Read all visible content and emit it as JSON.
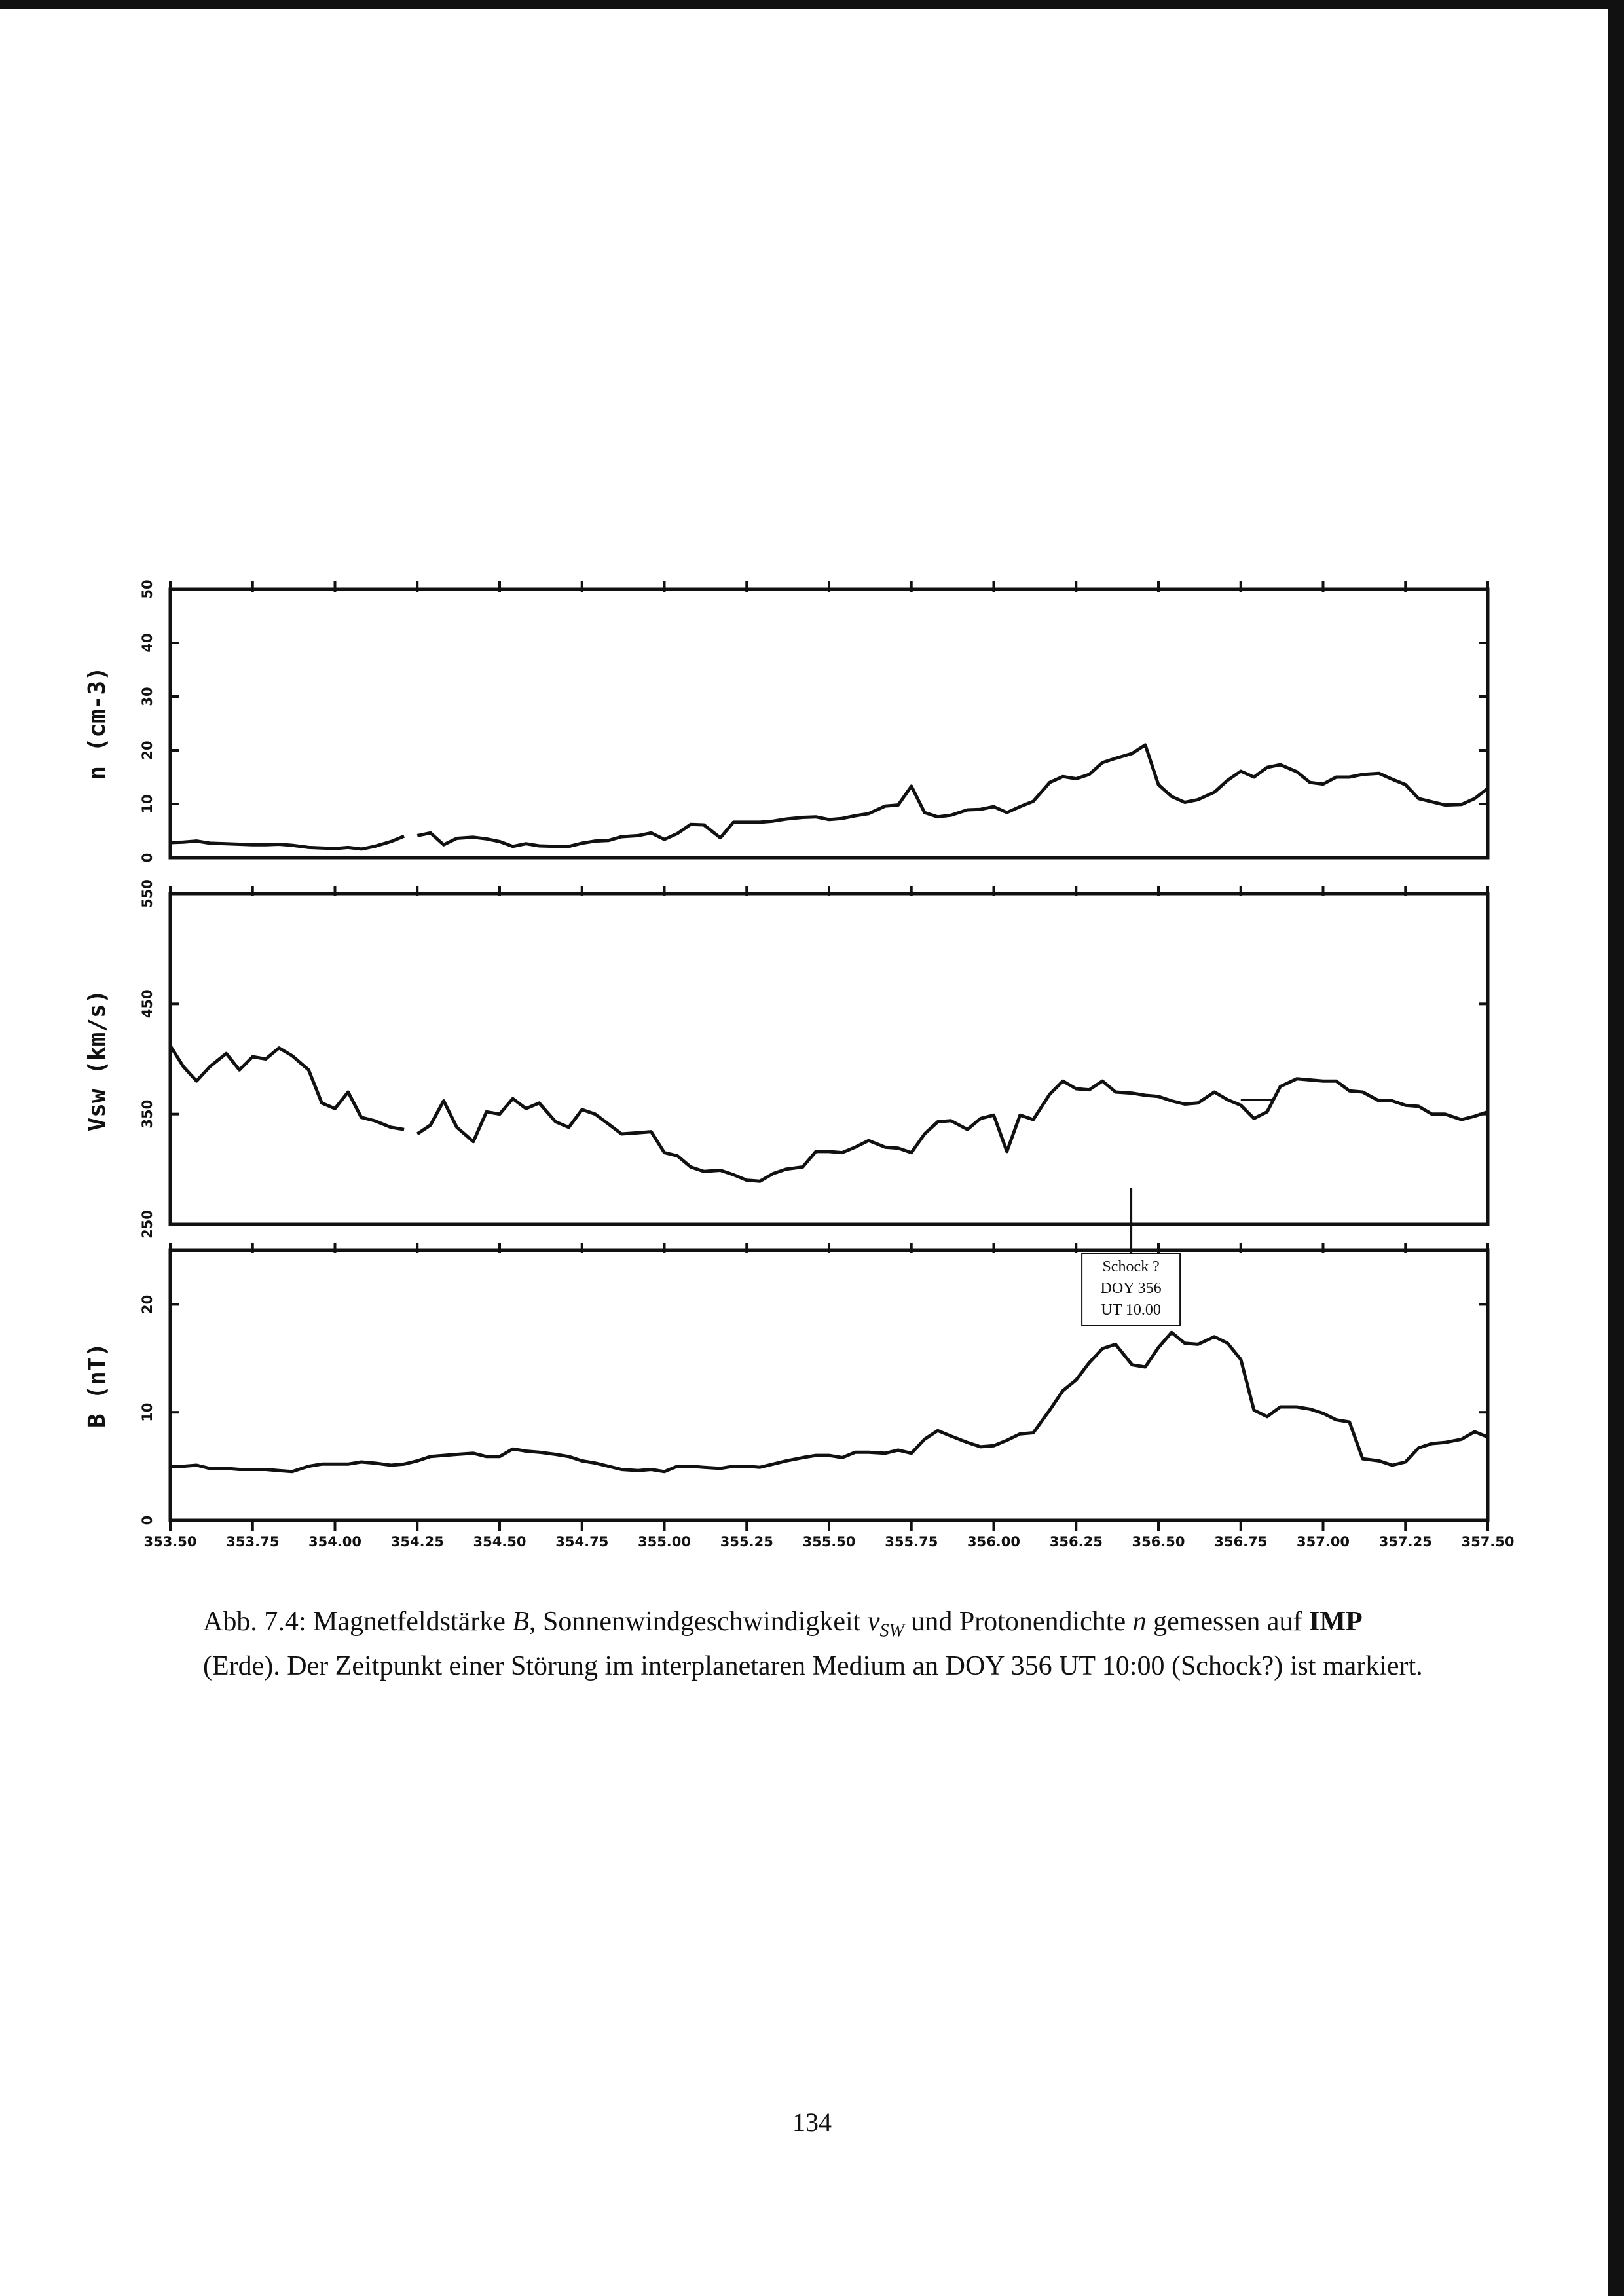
{
  "page": {
    "number": "134"
  },
  "caption": {
    "label": "Abb. 7.4:",
    "t1": " Magnetfeldstärke ",
    "sym_b": "B",
    "t2": ", Sonnenwindgeschwindigkeit ",
    "sym_v": "v",
    "sym_v_sub": "SW",
    "t3": " und Protonendichte ",
    "sym_n": "n",
    "t4": " gemessen auf ",
    "imp": "IMP",
    "t5": " (Erde). Der Zeitpunkt einer Störung im interplanetaren Medium an DOY 356 UT 10:00 (Schock?) ist markiert."
  },
  "annotation": {
    "line1": "Schock ?",
    "line2": "DOY 356",
    "line3": "UT 10.00",
    "x": 356.4167
  },
  "chart_data": [
    {
      "type": "line",
      "ylabel": "n (cm-3)",
      "xlim": [
        353.5,
        357.5
      ],
      "ylim": [
        0,
        50
      ],
      "yticks": [
        "0",
        "10",
        "20",
        "30",
        "40",
        "50"
      ],
      "series": [
        {
          "x": [
            353.5,
            353.54,
            353.58,
            353.62,
            353.67,
            353.71,
            353.75,
            353.79,
            353.83,
            353.87,
            353.92,
            353.96,
            354.0,
            354.04,
            354.08,
            354.12,
            354.17,
            354.21
          ],
          "y": [
            2.8,
            2.9,
            3.1,
            2.7,
            2.6,
            2.5,
            2.4,
            2.4,
            2.5,
            2.3,
            1.9,
            1.8,
            1.7,
            1.9,
            1.6,
            2.1,
            3.0,
            4.0
          ]
        },
        {
          "x": [
            354.25,
            354.29,
            354.33,
            354.37,
            354.42,
            354.46,
            354.5,
            354.54,
            354.58,
            354.62,
            354.67,
            354.71,
            354.75,
            354.79,
            354.83,
            354.87,
            354.92,
            354.96,
            355.0,
            355.04,
            355.08,
            355.12,
            355.17,
            355.21,
            355.25,
            355.29,
            355.33,
            355.37,
            355.42,
            355.46,
            355.5,
            355.54,
            355.58,
            355.62,
            355.67,
            355.71,
            355.75,
            355.79,
            355.83,
            355.87,
            355.92,
            355.96,
            356.0,
            356.04,
            356.08,
            356.12,
            356.17,
            356.21,
            356.25,
            356.29,
            356.33,
            356.37,
            356.42,
            356.46,
            356.5,
            356.54,
            356.58,
            356.62,
            356.67,
            356.71,
            356.75,
            356.79,
            356.83,
            356.87,
            356.92,
            356.96,
            357.0,
            357.04,
            357.08,
            357.12,
            357.17,
            357.21,
            357.25,
            357.29,
            357.33,
            357.37,
            357.42,
            357.46,
            357.5
          ]
        },
        {
          "x": [],
          "y": []
        }
      ]
    },
    {
      "type": "line",
      "ylabel": "Vsw (km/s)",
      "xlim": [
        353.5,
        357.5
      ],
      "ylim": [
        250,
        550
      ],
      "yticks": [
        "250",
        "350",
        "450",
        "550"
      ],
      "series": [
        {
          "x": [
            353.5,
            353.54,
            353.58,
            353.62,
            353.67,
            353.71,
            353.75,
            353.79,
            353.83,
            353.87,
            353.92,
            353.96,
            354.0,
            354.04,
            354.08,
            354.12,
            354.17,
            354.21
          ],
          "y": [
            412,
            393,
            380,
            393,
            405,
            390,
            402,
            400,
            410,
            403,
            390,
            360,
            355,
            370,
            347,
            344,
            338,
            336
          ]
        },
        {
          "x": [
            354.25,
            354.29,
            354.33,
            354.37,
            354.42,
            354.46,
            354.5,
            354.54,
            354.58,
            354.62,
            354.67,
            354.71,
            354.75,
            354.79,
            354.83,
            354.87,
            354.92,
            354.96,
            355.0,
            355.04,
            355.08,
            355.12,
            355.17,
            355.21,
            355.25,
            355.29,
            355.33,
            355.37,
            355.42,
            355.46,
            355.5,
            355.54,
            355.58,
            355.62,
            355.67,
            355.71,
            355.75,
            355.79,
            355.83,
            355.87,
            355.92,
            355.96,
            356.0,
            356.04,
            356.08,
            356.12,
            356.17,
            356.21,
            356.25,
            356.29,
            356.33,
            356.37,
            356.42,
            356.46,
            356.5,
            356.54,
            356.58,
            356.62,
            356.67,
            356.71,
            356.75,
            356.79,
            356.83,
            356.87,
            356.92,
            356.96,
            357.0,
            357.04,
            357.08,
            357.12,
            357.17,
            357.21,
            357.25,
            357.29,
            357.33,
            357.37,
            357.42,
            357.46,
            357.5
          ],
          "y": [
            332,
            340,
            362,
            338,
            325,
            352,
            350,
            364,
            355,
            360,
            343,
            338,
            354,
            350,
            341,
            332,
            333,
            334,
            315,
            312,
            302,
            298,
            299,
            295,
            290,
            289,
            296,
            300,
            302,
            316,
            316,
            315,
            320,
            326,
            320,
            319,
            315,
            332,
            343,
            344,
            336,
            346,
            349,
            316,
            349,
            345,
            368,
            380,
            373,
            372,
            380,
            370,
            369,
            367,
            366,
            362,
            359,
            360,
            370,
            363,
            358,
            346,
            352,
            375,
            382,
            381,
            380,
            380,
            371,
            370,
            362,
            362,
            358,
            357,
            350,
            350,
            345,
            348,
            352
          ]
        },
        {
          "x": [
            356.75,
            356.85
          ],
          "y": [
            363,
            363
          ]
        }
      ]
    },
    {
      "type": "line",
      "ylabel": "B (nT)",
      "xlim": [
        353.5,
        357.5
      ],
      "ylim": [
        0,
        25
      ],
      "yticks": [
        "0",
        "10",
        "20"
      ],
      "series": [
        {
          "x": [
            353.5,
            353.54,
            353.58,
            353.62,
            353.67,
            353.71,
            353.75,
            353.79,
            353.83,
            353.87,
            353.92,
            353.96,
            354.0,
            354.04,
            354.08,
            354.12,
            354.17,
            354.21,
            354.25,
            354.29,
            354.33,
            354.37,
            354.42,
            354.46,
            354.5,
            354.54,
            354.58,
            354.62,
            354.67,
            354.71,
            354.75,
            354.79,
            354.83,
            354.87,
            354.92,
            354.96,
            355.0,
            355.04,
            355.08,
            355.12,
            355.17,
            355.21,
            355.25,
            355.29,
            355.33,
            355.37,
            355.42,
            355.46,
            355.5,
            355.54,
            355.58,
            355.62,
            355.67,
            355.71,
            355.75,
            355.79,
            355.83,
            355.87,
            355.92,
            355.96,
            356.0,
            356.04,
            356.08,
            356.12,
            356.17,
            356.21,
            356.25,
            356.29,
            356.33,
            356.37,
            356.42,
            356.46,
            356.5,
            356.54,
            356.58,
            356.62,
            356.67,
            356.71,
            356.75,
            356.79,
            356.83,
            356.87,
            356.92,
            356.96,
            357.0,
            357.04,
            357.08,
            357.12,
            357.17,
            357.21,
            357.25,
            357.29,
            357.33,
            357.37,
            357.42,
            357.46,
            357.5
          ],
          "y": [
            5.0,
            5.0,
            5.1,
            4.8,
            4.8,
            4.7,
            4.7,
            4.7,
            4.6,
            4.5,
            5.0,
            5.2,
            5.2,
            5.2,
            5.4,
            5.3,
            5.1,
            5.2,
            5.5,
            5.9,
            6.0,
            6.1,
            6.2,
            5.9,
            5.9,
            6.6,
            6.4,
            6.3,
            6.1,
            5.9,
            5.5,
            5.3,
            5.0,
            4.7,
            4.6,
            4.7,
            4.5,
            5.0,
            5.0,
            4.9,
            4.8,
            5.0,
            5.0,
            4.9,
            5.2,
            5.5,
            5.8,
            6.0,
            6.0,
            5.8,
            6.3,
            6.3,
            6.2,
            6.5,
            6.2,
            7.5,
            8.3,
            7.8,
            7.2,
            6.8,
            6.9,
            7.4,
            8.0,
            8.1,
            10.2,
            12.0,
            13.0,
            14.6,
            15.9,
            16.3,
            14.4,
            14.2,
            16.0,
            17.4,
            16.4,
            16.3,
            17.0,
            16.4,
            14.9,
            10.2,
            9.6,
            10.5,
            10.5,
            10.3,
            9.9,
            9.3,
            9.1,
            5.7,
            5.5,
            5.1,
            5.4,
            6.7,
            7.1,
            7.2,
            7.5,
            8.2,
            7.7
          ]
        }
      ]
    }
  ],
  "x_ticks": [
    "353.50",
    "353.75",
    "354.00",
    "354.25",
    "354.50",
    "354.75",
    "355.00",
    "355.25",
    "355.50",
    "355.75",
    "356.00",
    "356.25",
    "356.50",
    "356.75",
    "357.00",
    "357.25",
    "357.50"
  ]
}
